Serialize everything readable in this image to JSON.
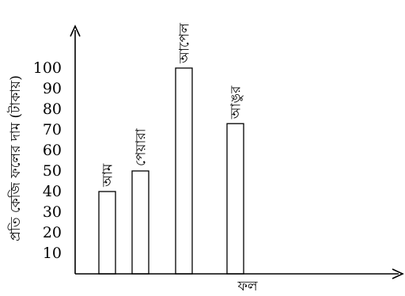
{
  "chart_data": {
    "type": "bar",
    "categories": [
      "আম",
      "পেয়ারা",
      "আপেল",
      "আঙুর"
    ],
    "values": [
      40,
      50,
      100,
      73
    ],
    "title": "",
    "xlabel": "ফল",
    "ylabel": "প্রতি কেজি ফলের দাম (টাকায়)",
    "yticks": [
      "10",
      "20",
      "30",
      "40",
      "50",
      "60",
      "70",
      "80",
      "90",
      "100"
    ],
    "ylim": [
      0,
      100
    ],
    "grid": false,
    "legend": "none"
  }
}
